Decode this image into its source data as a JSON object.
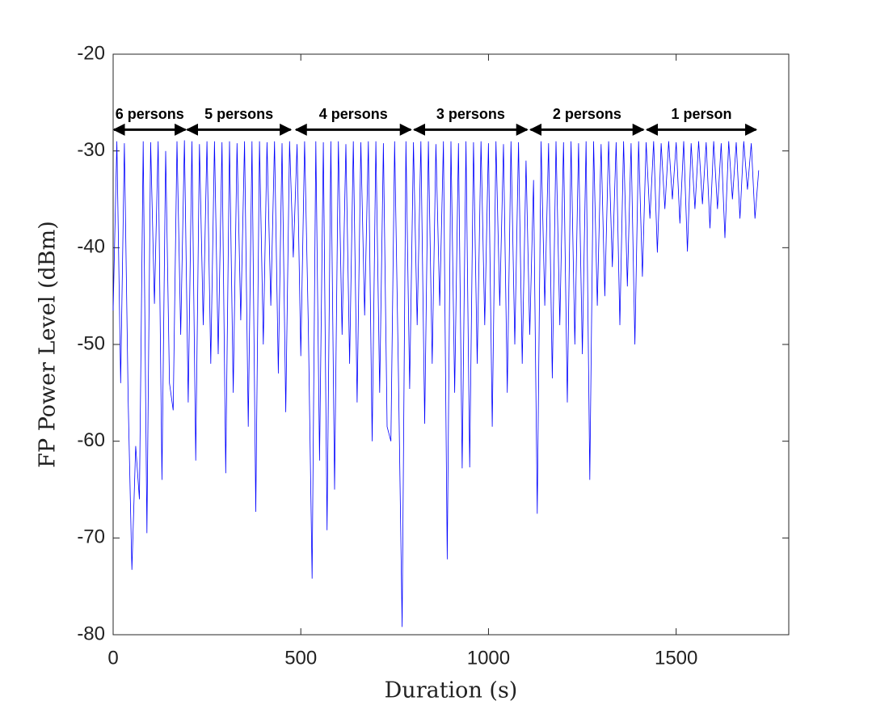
{
  "chart_data": {
    "type": "line",
    "x_label": "Duration (s)",
    "y_label": "FP Power Level (dBm)",
    "xlim": [
      0,
      1800
    ],
    "xticks": [
      0,
      500,
      1000,
      1500
    ],
    "ylim": [
      -80,
      -20
    ],
    "yticks": [
      -80,
      -70,
      -60,
      -50,
      -40,
      -30,
      -20
    ],
    "series": [
      {
        "color": "#0000ff",
        "x": [
          0,
          10,
          20,
          30,
          40,
          50,
          60,
          70,
          80,
          90,
          100,
          110,
          120,
          130,
          140,
          150,
          160,
          170,
          180,
          190,
          200,
          210,
          220,
          230,
          240,
          250,
          260,
          270,
          280,
          290,
          300,
          310,
          320,
          330,
          340,
          350,
          360,
          370,
          380,
          390,
          400,
          410,
          420,
          430,
          440,
          450,
          460,
          470,
          480,
          490,
          500,
          510,
          520,
          530,
          540,
          550,
          560,
          570,
          580,
          590,
          600,
          610,
          620,
          630,
          640,
          650,
          660,
          670,
          680,
          690,
          700,
          710,
          720,
          730,
          740,
          750,
          760,
          770,
          780,
          790,
          800,
          810,
          820,
          830,
          840,
          850,
          860,
          870,
          880,
          890,
          900,
          910,
          920,
          930,
          940,
          950,
          960,
          970,
          980,
          990,
          1000,
          1010,
          1020,
          1030,
          1040,
          1050,
          1060,
          1070,
          1080,
          1090,
          1100,
          1110,
          1120,
          1130,
          1140,
          1150,
          1160,
          1170,
          1180,
          1190,
          1200,
          1210,
          1220,
          1230,
          1240,
          1250,
          1260,
          1270,
          1280,
          1290,
          1300,
          1310,
          1320,
          1330,
          1340,
          1350,
          1360,
          1370,
          1380,
          1390,
          1400,
          1410,
          1420,
          1430,
          1440,
          1450,
          1460,
          1470,
          1480,
          1490,
          1500,
          1510,
          1520,
          1530,
          1540,
          1550,
          1560,
          1570,
          1580,
          1590,
          1600,
          1610,
          1620,
          1630,
          1640,
          1650,
          1660,
          1670,
          1680,
          1690,
          1700,
          1710,
          1720
        ],
        "values": [
          -46.5,
          -29,
          -54,
          -29.2,
          -55.8,
          -73.3,
          -60.5,
          -66,
          -29,
          -69.5,
          -29.1,
          -45.8,
          -29,
          -64,
          -30,
          -54,
          -56.8,
          -29,
          -49,
          -28.9,
          -56,
          -29,
          -62,
          -29.3,
          -48,
          -29,
          -52,
          -29,
          -51,
          -29.1,
          -63.3,
          -29,
          -55,
          -29.2,
          -47.5,
          -29,
          -58.5,
          -29,
          -67.3,
          -29,
          -50,
          -29.1,
          -46,
          -29,
          -53,
          -29.2,
          -57,
          -29,
          -41,
          -29.3,
          -51.2,
          -29,
          -48,
          -74.2,
          -29,
          -62,
          -29.1,
          -69.2,
          -29,
          -65,
          -29,
          -49,
          -29.3,
          -52,
          -29,
          -56,
          -29.1,
          -47,
          -29,
          -60,
          -29,
          -55,
          -29.2,
          -58.5,
          -60,
          -29,
          -53,
          -79.2,
          -29,
          -54.6,
          -29.1,
          -48,
          -29,
          -58.2,
          -29,
          -52,
          -29.3,
          -46,
          -29,
          -72.2,
          -29,
          -55,
          -29.2,
          -62.8,
          -29,
          -62.7,
          -29.1,
          -52,
          -29,
          -48,
          -29.2,
          -58.5,
          -29,
          -46,
          -29.3,
          -55,
          -29,
          -50,
          -29.1,
          -52,
          -31,
          -49,
          -33,
          -67.5,
          -29,
          -46,
          -29.2,
          -53.5,
          -29,
          -48,
          -29.1,
          -56,
          -29,
          -50,
          -29.2,
          -51,
          -29,
          -64,
          -29,
          -46,
          -29.3,
          -45,
          -29,
          -42,
          -29.1,
          -48,
          -29,
          -44,
          -29.2,
          -50,
          -29,
          -43,
          -29.1,
          -37,
          -29,
          -40.5,
          -29.2,
          -36,
          -29,
          -35,
          -29.1,
          -37.5,
          -29,
          -40.4,
          -29.2,
          -36,
          -29,
          -35.5,
          -29.1,
          -38,
          -29,
          -36,
          -29.2,
          -39,
          -29,
          -35,
          -29.1,
          -37,
          -29,
          -34,
          -29.2,
          -37,
          -32
        ]
      }
    ],
    "annotations": [
      {
        "text": "6 persons",
        "x_start": 0,
        "x_end": 195,
        "y": -27.8
      },
      {
        "text": "5 persons",
        "x_start": 195,
        "x_end": 475,
        "y": -27.8
      },
      {
        "text": "4 persons",
        "x_start": 485,
        "x_end": 795,
        "y": -27.8
      },
      {
        "text": "3 persons",
        "x_start": 800,
        "x_end": 1105,
        "y": -27.8
      },
      {
        "text": "2 persons",
        "x_start": 1110,
        "x_end": 1415,
        "y": -27.8
      },
      {
        "text": "1 person",
        "x_start": 1420,
        "x_end": 1715,
        "y": -27.8
      }
    ]
  }
}
